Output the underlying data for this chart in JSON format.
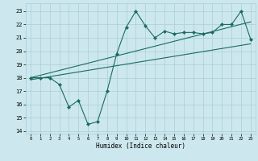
{
  "xlabel": "Humidex (Indice chaleur)",
  "xlim": [
    -0.5,
    23.5
  ],
  "ylim": [
    13.8,
    23.6
  ],
  "yticks": [
    14,
    15,
    16,
    17,
    18,
    19,
    20,
    21,
    22,
    23
  ],
  "xticks": [
    0,
    1,
    2,
    3,
    4,
    5,
    6,
    7,
    8,
    9,
    10,
    11,
    12,
    13,
    14,
    15,
    16,
    17,
    18,
    19,
    20,
    21,
    22,
    23
  ],
  "bg_color": "#cce8ee",
  "grid_color": "#aacdd6",
  "line_color": "#1a6b5e",
  "series1_x": [
    0,
    1,
    2,
    3,
    4,
    5,
    6,
    7,
    8,
    9,
    10,
    11,
    12,
    13,
    14,
    15,
    16,
    17,
    18,
    19,
    20,
    21,
    22,
    23
  ],
  "series1_y": [
    18.0,
    18.0,
    18.0,
    17.5,
    15.8,
    16.3,
    14.5,
    14.7,
    17.0,
    19.8,
    21.8,
    23.0,
    21.9,
    21.0,
    21.5,
    21.3,
    21.4,
    21.4,
    21.3,
    21.4,
    22.0,
    22.0,
    23.0,
    20.9
  ],
  "trend1_x": [
    0,
    23
  ],
  "trend1_y": [
    18.0,
    22.2
  ],
  "trend2_x": [
    0,
    23
  ],
  "trend2_y": [
    17.85,
    20.55
  ],
  "marker": "D",
  "markersize": 2.2,
  "linewidth": 0.8
}
